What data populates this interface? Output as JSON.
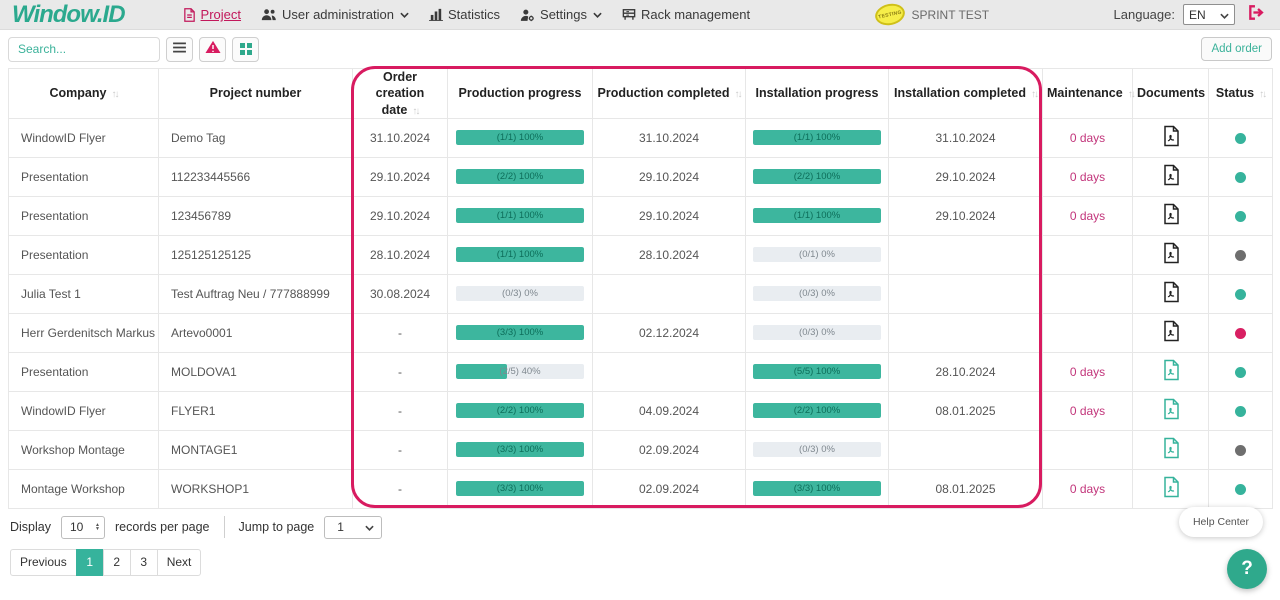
{
  "header": {
    "logo": "Window.ID",
    "nav": [
      {
        "label": "Project",
        "icon": "document-icon",
        "active": true,
        "dropdown": false
      },
      {
        "label": "User administration",
        "icon": "users-icon",
        "active": false,
        "dropdown": true
      },
      {
        "label": "Statistics",
        "icon": "chart-icon",
        "active": false,
        "dropdown": false
      },
      {
        "label": "Settings",
        "icon": "user-gear-icon",
        "active": false,
        "dropdown": true
      },
      {
        "label": "Rack management",
        "icon": "rack-icon",
        "active": false,
        "dropdown": false
      }
    ],
    "badge": {
      "stamp": "TESTING",
      "label": "SPRINT TEST"
    },
    "language_label": "Language:",
    "language_value": "EN",
    "logout_icon": "logout-icon"
  },
  "toolbar": {
    "search_placeholder": "Search...",
    "buttons": [
      "list-view-icon",
      "alert-icon",
      "grid-view-icon"
    ],
    "add_order_label": "Add order"
  },
  "table": {
    "columns": [
      {
        "label": "Company",
        "sortable": true
      },
      {
        "label": "Project number",
        "sortable": false
      },
      {
        "label": "Order creation date",
        "sortable": true
      },
      {
        "label": "Production progress",
        "sortable": false
      },
      {
        "label": "Production completed",
        "sortable": true
      },
      {
        "label": "Installation progress",
        "sortable": false
      },
      {
        "label": "Installation completed",
        "sortable": true
      },
      {
        "label": "Maintenance",
        "sortable": true
      },
      {
        "label": "Documents",
        "sortable": false
      },
      {
        "label": "Status",
        "sortable": true
      }
    ],
    "rows": [
      {
        "company": "WindowID Flyer",
        "project_number": "Demo Tag",
        "order_creation_date": "31.10.2024",
        "production_progress": {
          "label": "(1/1) 100%",
          "percent": 100
        },
        "production_completed": "31.10.2024",
        "installation_progress": {
          "label": "(1/1) 100%",
          "percent": 100
        },
        "installation_completed": "31.10.2024",
        "maintenance": "0 days",
        "documents": "dark",
        "status": "teal"
      },
      {
        "company": "Presentation",
        "project_number": "112233445566",
        "order_creation_date": "29.10.2024",
        "production_progress": {
          "label": "(2/2) 100%",
          "percent": 100
        },
        "production_completed": "29.10.2024",
        "installation_progress": {
          "label": "(2/2) 100%",
          "percent": 100
        },
        "installation_completed": "29.10.2024",
        "maintenance": "0 days",
        "documents": "dark",
        "status": "teal"
      },
      {
        "company": "Presentation",
        "project_number": "123456789",
        "order_creation_date": "29.10.2024",
        "production_progress": {
          "label": "(1/1) 100%",
          "percent": 100
        },
        "production_completed": "29.10.2024",
        "installation_progress": {
          "label": "(1/1) 100%",
          "percent": 100
        },
        "installation_completed": "29.10.2024",
        "maintenance": "0 days",
        "documents": "dark",
        "status": "teal"
      },
      {
        "company": "Presentation",
        "project_number": "125125125125",
        "order_creation_date": "28.10.2024",
        "production_progress": {
          "label": "(1/1) 100%",
          "percent": 100
        },
        "production_completed": "28.10.2024",
        "installation_progress": {
          "label": "(0/1) 0%",
          "percent": 0
        },
        "installation_completed": "",
        "maintenance": "",
        "documents": "dark",
        "status": "gray"
      },
      {
        "company": "Julia Test 1",
        "project_number": "Test Auftrag Neu / 777888999",
        "order_creation_date": "30.08.2024",
        "production_progress": {
          "label": "(0/3) 0%",
          "percent": 0
        },
        "production_completed": "",
        "installation_progress": {
          "label": "(0/3) 0%",
          "percent": 0
        },
        "installation_completed": "",
        "maintenance": "",
        "documents": "dark",
        "status": "teal"
      },
      {
        "company": "Herr Gerdenitsch Markus",
        "project_number": "Artevo0001",
        "order_creation_date": "-",
        "production_progress": {
          "label": "(3/3) 100%",
          "percent": 100
        },
        "production_completed": "02.12.2024",
        "installation_progress": {
          "label": "(0/3) 0%",
          "percent": 0
        },
        "installation_completed": "",
        "maintenance": "",
        "documents": "dark",
        "status": "pink"
      },
      {
        "company": "Presentation",
        "project_number": "MOLDOVA1",
        "order_creation_date": "-",
        "production_progress": {
          "label": "(2/5) 40%",
          "percent": 40
        },
        "production_completed": "",
        "installation_progress": {
          "label": "(5/5) 100%",
          "percent": 100
        },
        "installation_completed": "28.10.2024",
        "maintenance": "0 days",
        "documents": "teal",
        "status": "teal"
      },
      {
        "company": "WindowID Flyer",
        "project_number": "FLYER1",
        "order_creation_date": "-",
        "production_progress": {
          "label": "(2/2) 100%",
          "percent": 100
        },
        "production_completed": "04.09.2024",
        "installation_progress": {
          "label": "(2/2) 100%",
          "percent": 100
        },
        "installation_completed": "08.01.2025",
        "maintenance": "0 days",
        "documents": "teal",
        "status": "teal"
      },
      {
        "company": "Workshop Montage",
        "project_number": "MONTAGE1",
        "order_creation_date": "-",
        "production_progress": {
          "label": "(3/3) 100%",
          "percent": 100
        },
        "production_completed": "02.09.2024",
        "installation_progress": {
          "label": "(0/3) 0%",
          "percent": 0
        },
        "installation_completed": "",
        "maintenance": "",
        "documents": "teal",
        "status": "gray"
      },
      {
        "company": "Montage Workshop",
        "project_number": "WORKSHOP1",
        "order_creation_date": "-",
        "production_progress": {
          "label": "(3/3) 100%",
          "percent": 100
        },
        "production_completed": "02.09.2024",
        "installation_progress": {
          "label": "(3/3) 100%",
          "percent": 100
        },
        "installation_completed": "08.01.2025",
        "maintenance": "0 days",
        "documents": "teal",
        "status": "teal"
      }
    ]
  },
  "footer": {
    "display_label": "Display",
    "per_page_value": "10",
    "records_label": "records per page",
    "jump_label": "Jump to page",
    "jump_value": "1",
    "pagination": [
      "Previous",
      "1",
      "2",
      "3",
      "Next"
    ],
    "active_page": "1"
  },
  "help": {
    "tooltip": "Help Center",
    "button_label": "?"
  },
  "colors": {
    "teal": "#36b39c",
    "gray": "#6e6e6e",
    "pink": "#d81f62",
    "accent_teal": "#2ba98e",
    "highlight_ring": "#d81b60",
    "maintenance_text": "#c2357b",
    "pdf_dark": "#222222",
    "pdf_teal": "#36b39c"
  }
}
